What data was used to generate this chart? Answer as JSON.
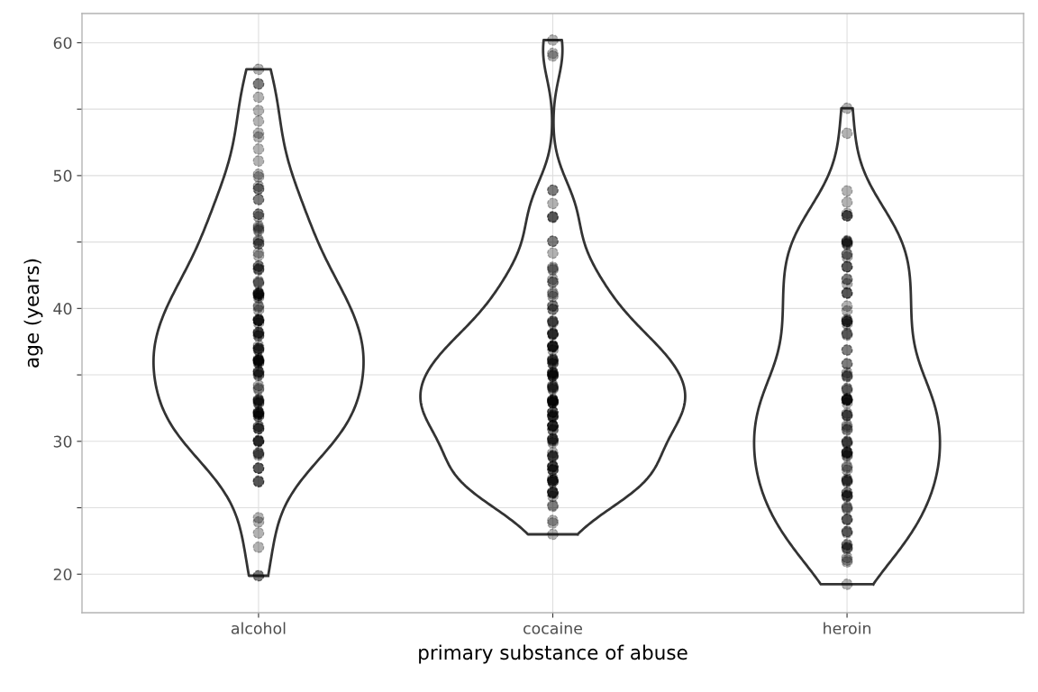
{
  "chart_data": {
    "type": "scatter",
    "xlabel": "primary substance of abuse",
    "ylabel": "age (years)",
    "categories": [
      "alcohol",
      "cocaine",
      "heroin"
    ],
    "ylim": [
      17.1,
      62.2
    ],
    "yticks": [
      20,
      {
        "value": 25,
        "label": null
      },
      30,
      {
        "value": 35,
        "label": null
      },
      40,
      {
        "value": 45,
        "label": null
      },
      50,
      {
        "value": 55,
        "label": null
      },
      60
    ],
    "grid": true,
    "marker": "circle",
    "series": [
      {
        "color": "#000000",
        "x": [
          "alcohol",
          "alcohol",
          "alcohol",
          "alcohol",
          "alcohol",
          "alcohol",
          "alcohol",
          "alcohol",
          "alcohol",
          "alcohol",
          "alcohol",
          "alcohol",
          "alcohol",
          "alcohol",
          "alcohol",
          "alcohol",
          "alcohol",
          "alcohol",
          "alcohol",
          "alcohol",
          "alcohol",
          "alcohol",
          "alcohol",
          "alcohol",
          "alcohol",
          "alcohol",
          "alcohol",
          "alcohol",
          "alcohol",
          "alcohol",
          "alcohol",
          "alcohol",
          "alcohol",
          "alcohol",
          "alcohol",
          "alcohol",
          "alcohol",
          "alcohol",
          "alcohol",
          "alcohol",
          "alcohol",
          "alcohol",
          "alcohol",
          "alcohol",
          "alcohol",
          "alcohol",
          "alcohol",
          "alcohol",
          "alcohol",
          "alcohol",
          "alcohol",
          "alcohol",
          "alcohol",
          "alcohol",
          "alcohol",
          "alcohol",
          "alcohol",
          "alcohol",
          "alcohol",
          "alcohol",
          "alcohol",
          "alcohol",
          "alcohol",
          "alcohol",
          "alcohol",
          "alcohol",
          "alcohol",
          "alcohol",
          "alcohol",
          "alcohol",
          "alcohol",
          "alcohol",
          "alcohol",
          "alcohol",
          "alcohol",
          "alcohol",
          "alcohol",
          "alcohol",
          "alcohol",
          "alcohol",
          "alcohol",
          "alcohol",
          "alcohol",
          "alcohol",
          "alcohol",
          "alcohol",
          "alcohol",
          "alcohol",
          "alcohol",
          "alcohol",
          "alcohol",
          "alcohol",
          "alcohol",
          "alcohol",
          "alcohol",
          "alcohol",
          "alcohol",
          "alcohol",
          "alcohol",
          "alcohol",
          "alcohol",
          "alcohol",
          "alcohol",
          "alcohol",
          "alcohol",
          "alcohol",
          "alcohol",
          "alcohol",
          "alcohol",
          "alcohol",
          "alcohol",
          "alcohol",
          "alcohol",
          "alcohol",
          "alcohol",
          "alcohol",
          "alcohol",
          "alcohol",
          "alcohol",
          "alcohol",
          "alcohol",
          "alcohol",
          "alcohol",
          "alcohol",
          "alcohol",
          "alcohol",
          "alcohol",
          "alcohol",
          "alcohol",
          "alcohol"
        ],
        "values": [
          58,
          56.9,
          56.9,
          55.9,
          54.9,
          54.1,
          52.9,
          53.2,
          52,
          51.1,
          50.1,
          49.9,
          49.2,
          49,
          49,
          48.2,
          48.2,
          47.1,
          47.1,
          46.9,
          45.96,
          45.85,
          46.07,
          46.2,
          45.15,
          44.86,
          44.86,
          45.05,
          44.2,
          43.97,
          43.2,
          43.17,
          42.95,
          43,
          42.9,
          42.04,
          41.96,
          41.9,
          41.1,
          41.1,
          41,
          40.94,
          41.15,
          40.8,
          41.2,
          41.1,
          41,
          40.2,
          40.1,
          39.87,
          39.07,
          39.15,
          39.2,
          39.1,
          39.1,
          39.1,
          38.9,
          38.07,
          37.94,
          38.2,
          38.15,
          37.94,
          38.2,
          36.86,
          37,
          36.9,
          37.2,
          37,
          37,
          35.93,
          36.11,
          36.06,
          36.06,
          36.06,
          36.14,
          35.87,
          36,
          36.2,
          36.11,
          35.2,
          35.1,
          34.96,
          35.25,
          35,
          35.25,
          34.2,
          33.1,
          33.03,
          32.98,
          32.9,
          33.1,
          32.84,
          34,
          33.9,
          33.16,
          32.2,
          32.03,
          32.1,
          31.87,
          31.9,
          32.17,
          32.2,
          32.03,
          32.1,
          30.96,
          30.96,
          31.15,
          30.94,
          31.1,
          30.02,
          29.97,
          30.02,
          30.02,
          30.08,
          29.08,
          28.95,
          29.16,
          29.08,
          27.98,
          27.98,
          27.98,
          27.02,
          26.96,
          26.96,
          24.25,
          23.93,
          23.1,
          22.03,
          19.88,
          19.88
        ]
      },
      {
        "color": "#000000",
        "x": [
          "cocaine",
          "cocaine",
          "cocaine",
          "cocaine",
          "cocaine",
          "cocaine",
          "cocaine",
          "cocaine",
          "cocaine",
          "cocaine",
          "cocaine",
          "cocaine",
          "cocaine",
          "cocaine",
          "cocaine",
          "cocaine",
          "cocaine",
          "cocaine",
          "cocaine",
          "cocaine",
          "cocaine",
          "cocaine",
          "cocaine",
          "cocaine",
          "cocaine",
          "cocaine",
          "cocaine",
          "cocaine",
          "cocaine",
          "cocaine",
          "cocaine",
          "cocaine",
          "cocaine",
          "cocaine",
          "cocaine",
          "cocaine",
          "cocaine",
          "cocaine",
          "cocaine",
          "cocaine",
          "cocaine",
          "cocaine",
          "cocaine",
          "cocaine",
          "cocaine",
          "cocaine",
          "cocaine",
          "cocaine",
          "cocaine",
          "cocaine",
          "cocaine",
          "cocaine",
          "cocaine",
          "cocaine",
          "cocaine",
          "cocaine",
          "cocaine",
          "cocaine",
          "cocaine",
          "cocaine",
          "cocaine",
          "cocaine",
          "cocaine",
          "cocaine",
          "cocaine",
          "cocaine",
          "cocaine",
          "cocaine",
          "cocaine",
          "cocaine",
          "cocaine",
          "cocaine",
          "cocaine",
          "cocaine",
          "cocaine",
          "cocaine",
          "cocaine",
          "cocaine",
          "cocaine",
          "cocaine",
          "cocaine",
          "cocaine",
          "cocaine",
          "cocaine",
          "cocaine",
          "cocaine",
          "cocaine",
          "cocaine",
          "cocaine",
          "cocaine",
          "cocaine",
          "cocaine",
          "cocaine",
          "cocaine",
          "cocaine",
          "cocaine",
          "cocaine",
          "cocaine",
          "cocaine",
          "cocaine",
          "cocaine",
          "cocaine",
          "cocaine",
          "cocaine",
          "cocaine",
          "cocaine",
          "cocaine",
          "cocaine",
          "cocaine",
          "cocaine",
          "cocaine",
          "cocaine",
          "cocaine",
          "cocaine",
          "cocaine",
          "cocaine",
          "cocaine",
          "cocaine",
          "cocaine",
          "cocaine",
          "cocaine",
          "cocaine",
          "cocaine",
          "cocaine"
        ],
        "values": [
          60.2,
          59.2,
          59,
          48.9,
          48.9,
          47.9,
          46.9,
          46.9,
          46.85,
          45.05,
          45.07,
          44.17,
          43.1,
          42.9,
          43,
          41.96,
          42.2,
          42,
          41.08,
          41.2,
          40.9,
          40.22,
          40.17,
          39.92,
          39.95,
          38.9,
          39.07,
          39,
          39,
          38.12,
          38.07,
          38.07,
          38.15,
          38.02,
          37.13,
          37.2,
          37.08,
          37.13,
          37.13,
          36.86,
          37.2,
          36.06,
          35.98,
          36.14,
          35.85,
          36.2,
          35.85,
          36.11,
          34.9,
          35.07,
          34.99,
          35.04,
          34.9,
          34.96,
          35.17,
          35.2,
          35.15,
          33.99,
          33.9,
          34.1,
          34.05,
          34.13,
          34.23,
          33.1,
          32.9,
          32.9,
          33.06,
          33.16,
          33.1,
          33,
          32.92,
          32.98,
          33.06,
          32.2,
          31.98,
          31.9,
          32.2,
          31.82,
          31.95,
          32.2,
          31.85,
          31.18,
          31.1,
          30.9,
          31.18,
          31.18,
          31.18,
          30.83,
          29.89,
          30.08,
          30.16,
          30.21,
          30.02,
          30.16,
          28.9,
          28.95,
          28.87,
          29.14,
          28.82,
          27.88,
          27.82,
          28.12,
          27.85,
          28.14,
          28.06,
          28.09,
          27.07,
          26.94,
          27.21,
          27.07,
          26.94,
          27.07,
          27.05,
          26.13,
          25.86,
          26.21,
          26.18,
          26.08,
          26.13,
          25.11,
          25.19,
          23.85,
          24.04,
          23
        ]
      },
      {
        "color": "#000000",
        "x": [
          "heroin",
          "heroin",
          "heroin",
          "heroin",
          "heroin",
          "heroin",
          "heroin",
          "heroin",
          "heroin",
          "heroin",
          "heroin",
          "heroin",
          "heroin",
          "heroin",
          "heroin",
          "heroin",
          "heroin",
          "heroin",
          "heroin",
          "heroin",
          "heroin",
          "heroin",
          "heroin",
          "heroin",
          "heroin",
          "heroin",
          "heroin",
          "heroin",
          "heroin",
          "heroin",
          "heroin",
          "heroin",
          "heroin",
          "heroin",
          "heroin",
          "heroin",
          "heroin",
          "heroin",
          "heroin",
          "heroin",
          "heroin",
          "heroin",
          "heroin",
          "heroin",
          "heroin",
          "heroin",
          "heroin",
          "heroin",
          "heroin",
          "heroin",
          "heroin",
          "heroin",
          "heroin",
          "heroin",
          "heroin",
          "heroin",
          "heroin",
          "heroin",
          "heroin",
          "heroin",
          "heroin",
          "heroin",
          "heroin",
          "heroin",
          "heroin",
          "heroin",
          "heroin",
          "heroin",
          "heroin",
          "heroin",
          "heroin",
          "heroin",
          "heroin",
          "heroin",
          "heroin",
          "heroin",
          "heroin",
          "heroin",
          "heroin",
          "heroin",
          "heroin",
          "heroin",
          "heroin",
          "heroin",
          "heroin",
          "heroin",
          "heroin",
          "heroin",
          "heroin",
          "heroin",
          "heroin",
          "heroin",
          "heroin",
          "heroin",
          "heroin",
          "heroin",
          "heroin",
          "heroin",
          "heroin",
          "heroin",
          "heroin",
          "heroin",
          "heroin",
          "heroin",
          "heroin",
          "heroin",
          "heroin"
        ],
        "values": [
          55.07,
          53.19,
          48.85,
          48,
          47.16,
          46.99,
          46.99,
          46.96,
          45.03,
          45.03,
          44.88,
          44.95,
          44.83,
          45.1,
          44.06,
          44.11,
          43.87,
          43.14,
          43.14,
          43.14,
          42.22,
          42.17,
          41.86,
          41.15,
          41.15,
          41.18,
          40.18,
          39.82,
          39.02,
          39.1,
          39.02,
          38.83,
          39.17,
          39,
          38.13,
          38.08,
          38,
          36.87,
          36.87,
          35.83,
          35.85,
          34.98,
          35.17,
          34.86,
          34.91,
          33.94,
          33.99,
          33.84,
          33.11,
          33.21,
          33.21,
          33.09,
          33.11,
          33.11,
          33.16,
          32.87,
          31.95,
          31.93,
          32.12,
          32,
          31.23,
          30.91,
          30.84,
          31.08,
          29.85,
          29.94,
          30.01,
          29.94,
          28.88,
          29.19,
          28.95,
          29.12,
          29.17,
          29.19,
          29.07,
          27.83,
          28.03,
          28.13,
          27.16,
          27.06,
          26.99,
          26.94,
          27.06,
          25.92,
          26.14,
          26.14,
          25.85,
          25.85,
          25.95,
          25,
          25.07,
          24.91,
          24.15,
          24.08,
          24.13,
          23.21,
          23.21,
          23.11,
          22.24,
          22.19,
          22.02,
          21.9,
          21.98,
          20.93,
          21.06,
          21.25,
          19.24
        ]
      }
    ]
  }
}
